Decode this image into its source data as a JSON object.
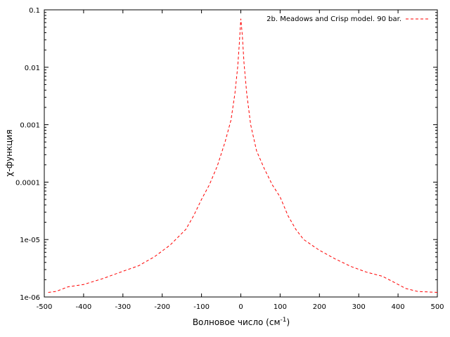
{
  "chart_data": {
    "type": "line",
    "xlabel": "Волновое число (см",
    "xlabel_sup": "-1",
    "xlabel_end": ")",
    "ylabel": "χ-функция",
    "xlim": [
      -500,
      500
    ],
    "ylim": [
      1e-06,
      0.1
    ],
    "yscale": "log",
    "grid": false,
    "legend_position": "top-right",
    "x_ticks": [
      -500,
      -400,
      -300,
      -200,
      -100,
      0,
      100,
      200,
      300,
      400,
      500
    ],
    "x_tick_labels": [
      "-500",
      "-400",
      "-300",
      "-200",
      "-100",
      "0",
      "100",
      "200",
      "300",
      "400",
      "500"
    ],
    "y_ticks": [
      1e-06,
      1e-05,
      0.0001,
      0.001,
      0.01,
      0.1
    ],
    "y_tick_labels": [
      "1e-06",
      "1e-05",
      "0.0001",
      "0.001",
      "0.01",
      "0.1"
    ],
    "series": [
      {
        "name": "2b. Meadows and Crisp model. 90 bar.",
        "color": "#ff0000",
        "dash": "dashed",
        "points": [
          [
            -490,
            1.2e-06
          ],
          [
            -470,
            1.25e-06
          ],
          [
            -440,
            1.5e-06
          ],
          [
            -400,
            1.65e-06
          ],
          [
            -350,
            2.1e-06
          ],
          [
            -300,
            2.8e-06
          ],
          [
            -260,
            3.5e-06
          ],
          [
            -220,
            5e-06
          ],
          [
            -180,
            8e-06
          ],
          [
            -140,
            1.5e-05
          ],
          [
            -120,
            2.6e-05
          ],
          [
            -100,
            5e-05
          ],
          [
            -80,
            9e-05
          ],
          [
            -60,
            0.00019
          ],
          [
            -40,
            0.0005
          ],
          [
            -25,
            0.0012
          ],
          [
            -15,
            0.0035
          ],
          [
            -8,
            0.01
          ],
          [
            -4,
            0.025
          ],
          [
            0,
            0.07
          ],
          [
            4,
            0.035
          ],
          [
            8,
            0.012
          ],
          [
            15,
            0.0035
          ],
          [
            25,
            0.001
          ],
          [
            40,
            0.00035
          ],
          [
            60,
            0.00017
          ],
          [
            80,
            9e-05
          ],
          [
            100,
            5.5e-05
          ],
          [
            120,
            2.6e-05
          ],
          [
            140,
            1.5e-05
          ],
          [
            160,
            1e-05
          ],
          [
            200,
            6.5e-06
          ],
          [
            240,
            4.6e-06
          ],
          [
            280,
            3.4e-06
          ],
          [
            320,
            2.7e-06
          ],
          [
            360,
            2.3e-06
          ],
          [
            390,
            1.8e-06
          ],
          [
            420,
            1.4e-06
          ],
          [
            450,
            1.25e-06
          ],
          [
            500,
            1.2e-06
          ]
        ]
      }
    ]
  }
}
